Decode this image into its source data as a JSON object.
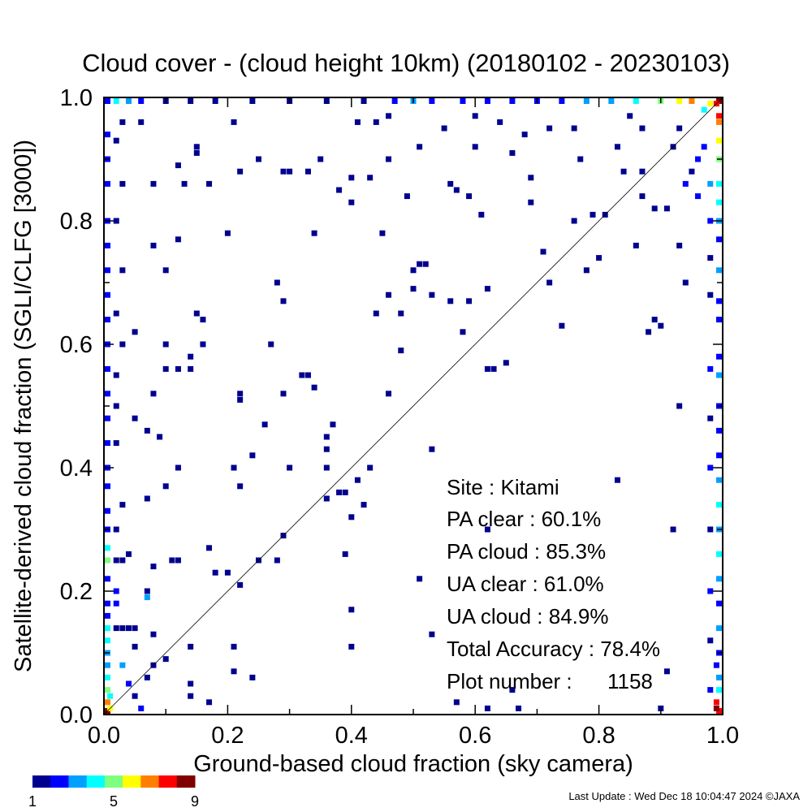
{
  "chart_data": {
    "type": "heatmap",
    "title": "Cloud cover - (cloud height 10km)  (20180102 - 20230103)",
    "xlabel": "Ground-based cloud fraction (sky camera)",
    "ylabel": "Satellite-derived cloud fraction (SGLI/CLFG [3000])",
    "xlim": [
      0,
      1
    ],
    "ylim": [
      0,
      1
    ],
    "xticks": [
      "0.0",
      "0.2",
      "0.4",
      "0.6",
      "0.8",
      "1.0"
    ],
    "yticks": [
      "0.0",
      "0.2",
      "0.4",
      "0.6",
      "0.8",
      "1.0"
    ],
    "stats": {
      "site": "Site : Kitami",
      "pa_clear": "PA clear :  60.1%",
      "pa_cloud": "PA cloud :  85.3%",
      "ua_clear": "UA clear :  61.0%",
      "ua_cloud": "UA cloud :  84.9%",
      "total_accuracy": "Total Accuracy :  78.4%",
      "plot_number": "Plot number :      1158"
    },
    "colorbar": {
      "min_label": "1",
      "mid_label": "5",
      "max_label": "9",
      "colors": [
        "#00008f",
        "#0000ff",
        "#00a0ff",
        "#00ffff",
        "#7fff7f",
        "#ffff00",
        "#ff8000",
        "#ff0000",
        "#800000"
      ]
    },
    "points": [
      [
        0.0,
        1.0,
        2
      ],
      [
        0.0,
        0.0,
        9
      ],
      [
        1.0,
        1.0,
        9
      ],
      [
        1.0,
        0.0,
        8
      ],
      [
        0.99,
        0.99,
        8
      ],
      [
        0.98,
        0.99,
        6
      ],
      [
        0.97,
        0.98,
        4
      ],
      [
        0.99,
        0.02,
        8
      ],
      [
        0.99,
        0.01,
        9
      ],
      [
        1.0,
        0.97,
        8
      ],
      [
        1.0,
        0.96,
        7
      ],
      [
        1.0,
        0.93,
        6
      ],
      [
        1.0,
        0.9,
        5
      ],
      [
        1.0,
        0.86,
        4
      ],
      [
        1.0,
        0.83,
        4
      ],
      [
        1.0,
        0.8,
        3
      ],
      [
        1.0,
        0.77,
        2
      ],
      [
        1.0,
        0.72,
        3
      ],
      [
        1.0,
        0.67,
        2
      ],
      [
        1.0,
        0.64,
        2
      ],
      [
        1.0,
        0.58,
        2
      ],
      [
        1.0,
        0.55,
        3
      ],
      [
        1.0,
        0.5,
        2
      ],
      [
        1.0,
        0.46,
        2
      ],
      [
        1.0,
        0.42,
        2
      ],
      [
        1.0,
        0.38,
        3
      ],
      [
        1.0,
        0.34,
        4
      ],
      [
        1.0,
        0.3,
        3
      ],
      [
        1.0,
        0.26,
        4
      ],
      [
        1.0,
        0.22,
        3
      ],
      [
        1.0,
        0.18,
        2
      ],
      [
        1.0,
        0.14,
        3
      ],
      [
        1.0,
        0.1,
        2
      ],
      [
        1.0,
        0.06,
        3
      ],
      [
        1.0,
        0.04,
        4
      ],
      [
        0.99,
        0.08,
        2
      ],
      [
        0.0,
        0.02,
        7
      ],
      [
        0.0,
        0.04,
        5
      ],
      [
        0.01,
        0.01,
        6
      ],
      [
        0.0,
        0.06,
        4
      ],
      [
        0.0,
        0.08,
        3
      ],
      [
        0.0,
        0.1,
        3
      ],
      [
        0.0,
        0.12,
        4
      ],
      [
        0.01,
        0.03,
        4
      ],
      [
        0.0,
        0.14,
        4
      ],
      [
        0.0,
        0.16,
        2
      ],
      [
        0.0,
        0.18,
        2
      ],
      [
        0.0,
        0.22,
        2
      ],
      [
        0.0,
        0.25,
        5
      ],
      [
        0.0,
        0.27,
        4
      ],
      [
        0.0,
        0.3,
        2
      ],
      [
        0.0,
        0.33,
        2
      ],
      [
        0.0,
        0.37,
        2
      ],
      [
        0.0,
        0.4,
        2
      ],
      [
        0.0,
        0.44,
        2
      ],
      [
        0.0,
        0.48,
        2
      ],
      [
        0.0,
        0.52,
        2
      ],
      [
        0.0,
        0.56,
        2
      ],
      [
        0.0,
        0.6,
        2
      ],
      [
        0.0,
        0.64,
        2
      ],
      [
        0.0,
        0.68,
        2
      ],
      [
        0.0,
        0.72,
        2
      ],
      [
        0.0,
        0.76,
        2
      ],
      [
        0.0,
        0.8,
        2
      ],
      [
        0.0,
        0.86,
        2
      ],
      [
        0.0,
        0.9,
        2
      ],
      [
        0.0,
        0.94,
        2
      ],
      [
        0.02,
        1.0,
        4
      ],
      [
        0.04,
        1.0,
        3
      ],
      [
        0.06,
        1.0,
        2
      ],
      [
        0.1,
        1.0,
        1
      ],
      [
        0.14,
        1.0,
        1
      ],
      [
        0.18,
        1.0,
        1
      ],
      [
        0.24,
        1.0,
        1
      ],
      [
        0.3,
        1.0,
        1
      ],
      [
        0.36,
        1.0,
        1
      ],
      [
        0.42,
        1.0,
        1
      ],
      [
        0.47,
        1.0,
        2
      ],
      [
        0.5,
        1.0,
        3
      ],
      [
        0.53,
        1.0,
        2
      ],
      [
        0.58,
        1.0,
        2
      ],
      [
        0.62,
        1.0,
        2
      ],
      [
        0.66,
        1.0,
        2
      ],
      [
        0.7,
        1.0,
        2
      ],
      [
        0.74,
        1.0,
        2
      ],
      [
        0.78,
        1.0,
        3
      ],
      [
        0.82,
        1.0,
        3
      ],
      [
        0.86,
        1.0,
        4
      ],
      [
        0.9,
        1.0,
        5
      ],
      [
        0.93,
        1.0,
        6
      ],
      [
        0.95,
        1.0,
        7
      ],
      [
        0.02,
        0.14,
        1
      ],
      [
        0.03,
        0.14,
        1
      ],
      [
        0.04,
        0.14,
        1
      ],
      [
        0.05,
        0.14,
        1
      ],
      [
        0.02,
        0.25,
        1
      ],
      [
        0.03,
        0.25,
        1
      ],
      [
        0.04,
        0.26,
        1
      ],
      [
        0.02,
        0.3,
        1
      ],
      [
        0.03,
        0.34,
        1
      ],
      [
        0.02,
        0.44,
        1
      ],
      [
        0.02,
        0.5,
        1
      ],
      [
        0.02,
        0.55,
        1
      ],
      [
        0.03,
        0.6,
        1
      ],
      [
        0.02,
        0.65,
        1
      ],
      [
        0.05,
        0.62,
        1
      ],
      [
        0.03,
        0.72,
        1
      ],
      [
        0.02,
        0.8,
        1
      ],
      [
        0.03,
        0.86,
        1
      ],
      [
        0.02,
        0.93,
        1
      ],
      [
        0.03,
        0.96,
        1
      ],
      [
        0.05,
        0.03,
        1
      ],
      [
        0.07,
        0.06,
        1
      ],
      [
        0.08,
        0.08,
        1
      ],
      [
        0.1,
        0.09,
        1
      ],
      [
        0.05,
        0.11,
        1
      ],
      [
        0.08,
        0.13,
        1
      ],
      [
        0.07,
        0.2,
        1
      ],
      [
        0.08,
        0.24,
        1
      ],
      [
        0.11,
        0.25,
        1
      ],
      [
        0.12,
        0.25,
        1
      ],
      [
        0.07,
        0.35,
        1
      ],
      [
        0.1,
        0.37,
        1
      ],
      [
        0.07,
        0.46,
        1
      ],
      [
        0.08,
        0.52,
        1
      ],
      [
        0.1,
        0.56,
        1
      ],
      [
        0.12,
        0.56,
        1
      ],
      [
        0.14,
        0.56,
        1
      ],
      [
        0.1,
        0.6,
        1
      ],
      [
        0.08,
        0.76,
        1
      ],
      [
        0.1,
        0.72,
        1
      ],
      [
        0.12,
        0.77,
        1
      ],
      [
        0.08,
        0.86,
        1
      ],
      [
        0.12,
        0.89,
        1
      ],
      [
        0.15,
        0.92,
        1
      ],
      [
        0.06,
        0.96,
        1
      ],
      [
        0.14,
        0.05,
        1
      ],
      [
        0.14,
        0.03,
        1
      ],
      [
        0.17,
        0.02,
        1
      ],
      [
        0.14,
        0.11,
        1
      ],
      [
        0.17,
        0.27,
        1
      ],
      [
        0.18,
        0.23,
        1
      ],
      [
        0.2,
        0.23,
        1
      ],
      [
        0.22,
        0.21,
        1
      ],
      [
        0.21,
        0.07,
        1
      ],
      [
        0.21,
        0.11,
        1
      ],
      [
        0.24,
        0.06,
        1
      ],
      [
        0.25,
        0.25,
        1
      ],
      [
        0.29,
        0.29,
        1
      ],
      [
        0.28,
        0.25,
        1
      ],
      [
        0.22,
        0.37,
        1
      ],
      [
        0.21,
        0.4,
        1
      ],
      [
        0.22,
        0.52,
        1
      ],
      [
        0.26,
        0.47,
        1
      ],
      [
        0.22,
        0.51,
        1
      ],
      [
        0.2,
        0.78,
        1
      ],
      [
        0.17,
        0.86,
        1
      ],
      [
        0.22,
        0.88,
        1
      ],
      [
        0.25,
        0.9,
        1
      ],
      [
        0.3,
        0.88,
        1
      ],
      [
        0.33,
        0.88,
        1
      ],
      [
        0.34,
        0.78,
        1
      ],
      [
        0.29,
        0.67,
        1
      ],
      [
        0.28,
        0.7,
        1
      ],
      [
        0.33,
        0.55,
        1
      ],
      [
        0.34,
        0.53,
        1
      ],
      [
        0.36,
        0.45,
        1
      ],
      [
        0.36,
        0.43,
        1
      ],
      [
        0.36,
        0.4,
        1
      ],
      [
        0.38,
        0.36,
        1
      ],
      [
        0.36,
        0.35,
        1
      ],
      [
        0.39,
        0.36,
        1
      ],
      [
        0.4,
        0.32,
        1
      ],
      [
        0.39,
        0.26,
        1
      ],
      [
        0.4,
        0.17,
        1
      ],
      [
        0.4,
        0.11,
        1
      ],
      [
        0.42,
        0.34,
        1
      ],
      [
        0.41,
        0.38,
        1
      ],
      [
        0.44,
        0.65,
        1
      ],
      [
        0.46,
        0.52,
        1
      ],
      [
        0.45,
        0.78,
        1
      ],
      [
        0.4,
        0.83,
        1
      ],
      [
        0.4,
        0.87,
        1
      ],
      [
        0.41,
        0.96,
        1
      ],
      [
        0.44,
        0.96,
        1
      ],
      [
        0.46,
        0.97,
        1
      ],
      [
        0.48,
        0.65,
        1
      ],
      [
        0.48,
        0.59,
        1
      ],
      [
        0.5,
        0.72,
        1
      ],
      [
        0.49,
        0.84,
        1
      ],
      [
        0.51,
        0.73,
        1
      ],
      [
        0.52,
        0.73,
        1
      ],
      [
        0.51,
        0.22,
        1
      ],
      [
        0.53,
        0.43,
        1
      ],
      [
        0.53,
        0.13,
        1
      ],
      [
        0.56,
        0.86,
        1
      ],
      [
        0.57,
        0.85,
        1
      ],
      [
        0.59,
        0.84,
        1
      ],
      [
        0.61,
        0.81,
        1
      ],
      [
        0.6,
        0.92,
        1
      ],
      [
        0.58,
        0.62,
        1
      ],
      [
        0.59,
        0.67,
        1
      ],
      [
        0.56,
        0.67,
        1
      ],
      [
        0.62,
        0.69,
        1
      ],
      [
        0.62,
        0.56,
        1
      ],
      [
        0.63,
        0.56,
        1
      ],
      [
        0.62,
        0.3,
        1
      ],
      [
        0.57,
        0.02,
        1
      ],
      [
        0.62,
        0.01,
        1
      ],
      [
        0.66,
        0.04,
        1
      ],
      [
        0.67,
        0.01,
        1
      ],
      [
        0.65,
        0.57,
        1
      ],
      [
        0.69,
        0.83,
        1
      ],
      [
        0.72,
        0.7,
        1
      ],
      [
        0.74,
        0.63,
        1
      ],
      [
        0.76,
        0.8,
        1
      ],
      [
        0.78,
        0.72,
        1
      ],
      [
        0.77,
        0.9,
        1
      ],
      [
        0.79,
        0.81,
        1
      ],
      [
        0.81,
        0.81,
        1
      ],
      [
        0.83,
        0.38,
        1
      ],
      [
        0.84,
        0.88,
        1
      ],
      [
        0.86,
        0.76,
        1
      ],
      [
        0.87,
        0.88,
        1
      ],
      [
        0.87,
        0.84,
        1
      ],
      [
        0.88,
        0.62,
        1
      ],
      [
        0.89,
        0.64,
        1
      ],
      [
        0.9,
        0.63,
        1
      ],
      [
        0.89,
        0.82,
        1
      ],
      [
        0.91,
        0.82,
        1
      ],
      [
        0.92,
        0.92,
        1
      ],
      [
        0.92,
        0.3,
        1
      ],
      [
        0.93,
        0.5,
        1
      ],
      [
        0.93,
        0.76,
        1
      ],
      [
        0.94,
        0.7,
        1
      ],
      [
        0.91,
        0.07,
        1
      ],
      [
        0.9,
        0.01,
        1
      ],
      [
        0.85,
        0.97,
        1
      ],
      [
        0.87,
        0.95,
        1
      ],
      [
        0.83,
        0.92,
        1
      ],
      [
        0.76,
        0.95,
        1
      ],
      [
        0.72,
        0.95,
        1
      ],
      [
        0.68,
        0.94,
        1
      ],
      [
        0.64,
        0.96,
        1
      ],
      [
        0.6,
        0.97,
        1
      ],
      [
        0.55,
        0.95,
        1
      ],
      [
        0.51,
        0.92,
        1
      ],
      [
        0.46,
        0.9,
        1
      ],
      [
        0.43,
        0.87,
        1
      ],
      [
        0.38,
        0.85,
        1
      ],
      [
        0.35,
        0.9,
        1
      ],
      [
        0.29,
        0.88,
        1
      ],
      [
        0.21,
        0.96,
        1
      ],
      [
        0.15,
        0.91,
        1
      ],
      [
        0.13,
        0.86,
        1
      ],
      [
        0.15,
        0.65,
        1
      ],
      [
        0.14,
        0.58,
        1
      ],
      [
        0.09,
        0.45,
        1
      ],
      [
        0.05,
        0.48,
        1
      ],
      [
        0.12,
        0.4,
        1
      ],
      [
        0.16,
        0.64,
        1
      ],
      [
        0.16,
        0.6,
        1
      ],
      [
        0.27,
        0.6,
        1
      ],
      [
        0.29,
        0.52,
        1
      ],
      [
        0.32,
        0.55,
        1
      ],
      [
        0.24,
        0.42,
        1
      ],
      [
        0.3,
        0.4,
        1
      ],
      [
        0.37,
        0.47,
        1
      ],
      [
        0.43,
        0.4,
        1
      ],
      [
        0.46,
        0.68,
        1
      ],
      [
        0.5,
        0.69,
        1
      ],
      [
        0.53,
        0.68,
        1
      ],
      [
        0.69,
        0.87,
        1
      ],
      [
        0.66,
        0.91,
        1
      ],
      [
        0.71,
        0.75,
        1
      ],
      [
        0.8,
        0.74,
        1
      ],
      [
        0.93,
        0.95,
        1
      ],
      [
        0.97,
        0.92,
        2
      ],
      [
        0.96,
        0.9,
        2
      ],
      [
        0.95,
        0.88,
        1
      ],
      [
        0.94,
        0.86,
        2
      ],
      [
        0.96,
        0.84,
        2
      ],
      [
        0.98,
        0.86,
        3
      ],
      [
        0.98,
        0.8,
        2
      ],
      [
        0.98,
        0.74,
        1
      ],
      [
        0.98,
        0.68,
        1
      ],
      [
        0.98,
        0.56,
        2
      ],
      [
        0.98,
        0.48,
        1
      ],
      [
        0.98,
        0.4,
        2
      ],
      [
        0.98,
        0.3,
        1
      ],
      [
        0.98,
        0.2,
        2
      ],
      [
        0.98,
        0.12,
        1
      ],
      [
        0.98,
        0.04,
        2
      ],
      [
        0.06,
        0.01,
        2
      ],
      [
        0.03,
        0.08,
        3
      ],
      [
        0.04,
        0.05,
        2
      ],
      [
        0.02,
        0.18,
        2
      ],
      [
        0.02,
        0.2,
        2
      ],
      [
        0.07,
        0.19,
        3
      ]
    ]
  },
  "footer": {
    "last_update": "Last Update : Wed Dec 18 10:04:47 2024  ©JAXA"
  }
}
